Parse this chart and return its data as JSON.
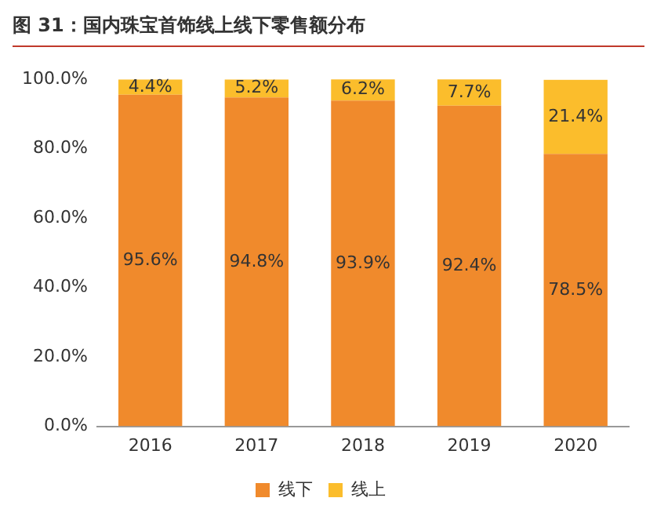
{
  "chart_data": {
    "type": "bar",
    "title": "图 31：国内珠宝首饰线上线下零售额分布",
    "categories": [
      "2016",
      "2017",
      "2018",
      "2019",
      "2020"
    ],
    "stacked": true,
    "series": [
      {
        "name": "线下",
        "color": "#f08a2c",
        "values": [
          95.6,
          94.8,
          93.9,
          92.4,
          78.5
        ],
        "value_labels": [
          "95.6%",
          "94.8%",
          "93.9%",
          "92.4%",
          "78.5%"
        ]
      },
      {
        "name": "线上",
        "color": "#fbbd2c",
        "values": [
          4.4,
          5.2,
          6.2,
          7.7,
          21.4
        ],
        "value_labels": [
          "4.4%",
          "5.2%",
          "6.2%",
          "7.7%",
          "21.4%"
        ]
      }
    ],
    "ylim": [
      0,
      100
    ],
    "yticks": [
      {
        "value": 0,
        "label": "0.0%"
      },
      {
        "value": 20,
        "label": "20.0%"
      },
      {
        "value": 40,
        "label": "40.0%"
      },
      {
        "value": 60,
        "label": "60.0%"
      },
      {
        "value": 80,
        "label": "80.0%"
      },
      {
        "value": 100,
        "label": "100.0%"
      }
    ],
    "grid": false,
    "legend": "bottom"
  }
}
